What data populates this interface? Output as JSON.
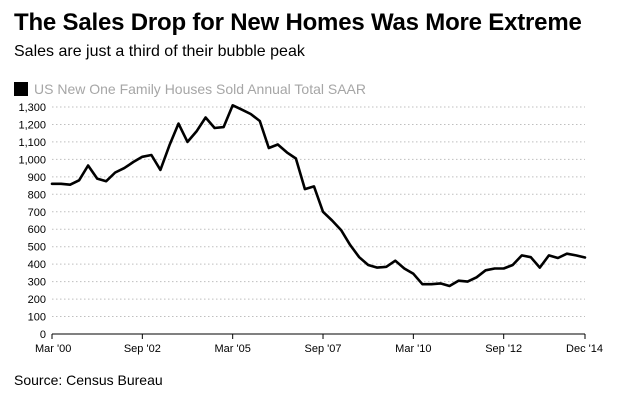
{
  "header": {
    "title": "The Sales Drop for New Homes Was More Extreme",
    "subtitle": "Sales are just a third of their bubble peak"
  },
  "legend": {
    "label": "US New One Family Houses Sold Annual Total SAAR"
  },
  "footer": {
    "source": "Source: Census Bureau"
  },
  "colors": {
    "line": "#000000",
    "grid": "#bfbfbf",
    "legend_text": "#a6a6a6"
  },
  "chart_data": {
    "type": "line",
    "title": "The Sales Drop for New Homes Was More Extreme",
    "xlabel": "",
    "ylabel": "",
    "xlim": [
      2000.17,
      2014.92
    ],
    "ylim": [
      0,
      1300
    ],
    "y_ticks": [
      0,
      100,
      200,
      300,
      400,
      500,
      600,
      700,
      800,
      900,
      1000,
      1100,
      1200,
      1300
    ],
    "y_tick_labels": [
      "0",
      "100",
      "200",
      "300",
      "400",
      "500",
      "600",
      "700",
      "800",
      "900",
      "1,000",
      "1,100",
      "1,200",
      "1,300"
    ],
    "x_ticks": [
      2000.17,
      2002.67,
      2005.17,
      2007.67,
      2010.17,
      2012.67,
      2014.92
    ],
    "x_tick_labels": [
      "Mar '00",
      "Sep '02",
      "Mar '05",
      "Sep '07",
      "Mar '10",
      "Sep '12",
      "Dec '14"
    ],
    "grid": true,
    "legend_position": "top-left",
    "series": [
      {
        "name": "US New One Family Houses Sold Annual Total SAAR",
        "x": [
          2000.17,
          2000.42,
          2000.67,
          2000.92,
          2001.17,
          2001.42,
          2001.67,
          2001.92,
          2002.17,
          2002.42,
          2002.67,
          2002.92,
          2003.17,
          2003.42,
          2003.67,
          2003.92,
          2004.17,
          2004.42,
          2004.67,
          2004.92,
          2005.17,
          2005.42,
          2005.67,
          2005.92,
          2006.17,
          2006.42,
          2006.67,
          2006.92,
          2007.17,
          2007.42,
          2007.67,
          2007.92,
          2008.17,
          2008.42,
          2008.67,
          2008.92,
          2009.17,
          2009.42,
          2009.67,
          2009.92,
          2010.17,
          2010.42,
          2010.67,
          2010.92,
          2011.17,
          2011.42,
          2011.67,
          2011.92,
          2012.17,
          2012.42,
          2012.67,
          2012.92,
          2013.17,
          2013.42,
          2013.67,
          2013.92,
          2014.17,
          2014.42,
          2014.67,
          2014.92
        ],
        "values": [
          860,
          860,
          855,
          880,
          965,
          890,
          875,
          925,
          950,
          985,
          1015,
          1025,
          940,
          1080,
          1205,
          1100,
          1160,
          1240,
          1180,
          1185,
          1310,
          1285,
          1260,
          1220,
          1065,
          1085,
          1040,
          1005,
          830,
          845,
          700,
          650,
          595,
          510,
          440,
          395,
          380,
          385,
          420,
          375,
          345,
          285,
          285,
          290,
          275,
          305,
          300,
          325,
          365,
          375,
          375,
          395,
          450,
          440,
          380,
          450,
          435,
          460,
          450,
          438
        ]
      }
    ]
  }
}
